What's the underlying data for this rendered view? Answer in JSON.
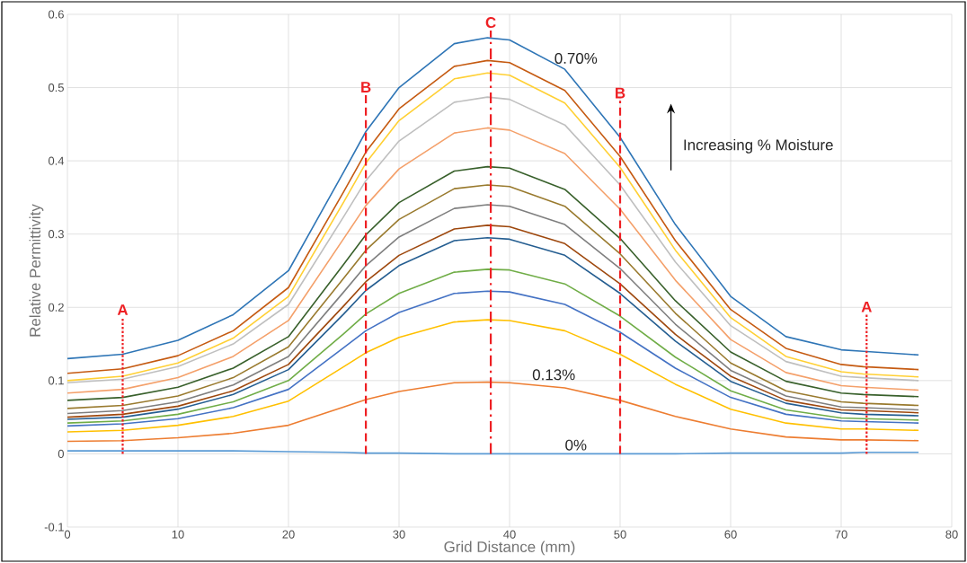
{
  "chart_data": {
    "type": "line",
    "xlabel": "Grid Distance (mm)",
    "ylabel": "Relative Permittivity",
    "x": [
      0,
      5,
      10,
      15,
      20,
      25,
      27,
      30,
      35,
      38,
      40,
      45,
      50,
      55,
      60,
      65,
      70,
      72,
      77
    ],
    "xlim": [
      0,
      80
    ],
    "xticks": [
      0,
      10,
      20,
      30,
      40,
      50,
      60,
      70,
      80
    ],
    "ylim": [
      -0.1,
      0.6
    ],
    "yticks": [
      -0.1,
      0,
      0.1,
      0.2,
      0.3,
      0.4,
      0.5,
      0.6
    ],
    "grid": true,
    "marker": "none",
    "line_style": "solid",
    "series": [
      {
        "color": "#2e75b6",
        "values": [
          0.13,
          0.136,
          0.155,
          0.19,
          0.25,
          0.385,
          0.44,
          0.5,
          0.56,
          0.568,
          0.565,
          0.525,
          0.432,
          0.313,
          0.215,
          0.16,
          0.142,
          0.14,
          0.135
        ]
      },
      {
        "color": "#c55a11",
        "values": [
          0.11,
          0.116,
          0.134,
          0.168,
          0.227,
          0.358,
          0.412,
          0.471,
          0.529,
          0.537,
          0.534,
          0.496,
          0.406,
          0.291,
          0.197,
          0.144,
          0.122,
          0.119,
          0.115
        ]
      },
      {
        "color": "#ffd034",
        "values": [
          0.1,
          0.106,
          0.124,
          0.158,
          0.215,
          0.344,
          0.397,
          0.455,
          0.512,
          0.52,
          0.517,
          0.479,
          0.391,
          0.278,
          0.186,
          0.133,
          0.112,
          0.109,
          0.105
        ]
      },
      {
        "color": "#bfbfbf",
        "values": [
          0.097,
          0.102,
          0.119,
          0.15,
          0.204,
          0.324,
          0.373,
          0.427,
          0.48,
          0.487,
          0.484,
          0.449,
          0.367,
          0.262,
          0.175,
          0.126,
          0.106,
          0.104,
          0.1
        ]
      },
      {
        "color": "#f4a06a",
        "values": [
          0.083,
          0.088,
          0.104,
          0.133,
          0.182,
          0.294,
          0.339,
          0.389,
          0.438,
          0.445,
          0.442,
          0.41,
          0.334,
          0.237,
          0.156,
          0.111,
          0.093,
          0.091,
          0.087
        ]
      },
      {
        "color": "#38602b",
        "values": [
          0.073,
          0.077,
          0.091,
          0.117,
          0.16,
          0.259,
          0.299,
          0.343,
          0.386,
          0.392,
          0.39,
          0.361,
          0.294,
          0.209,
          0.139,
          0.099,
          0.083,
          0.081,
          0.078
        ]
      },
      {
        "color": "#997a2e",
        "values": [
          0.062,
          0.066,
          0.079,
          0.104,
          0.146,
          0.24,
          0.278,
          0.32,
          0.362,
          0.367,
          0.365,
          0.338,
          0.273,
          0.192,
          0.124,
          0.086,
          0.071,
          0.069,
          0.066
        ]
      },
      {
        "color": "#7f7f7f",
        "values": [
          0.055,
          0.059,
          0.071,
          0.094,
          0.133,
          0.221,
          0.257,
          0.296,
          0.335,
          0.34,
          0.338,
          0.313,
          0.253,
          0.177,
          0.114,
          0.079,
          0.064,
          0.063,
          0.06
        ]
      },
      {
        "color": "#9e480e",
        "values": [
          0.05,
          0.054,
          0.065,
          0.086,
          0.122,
          0.202,
          0.235,
          0.271,
          0.307,
          0.312,
          0.31,
          0.287,
          0.232,
          0.163,
          0.106,
          0.073,
          0.06,
          0.059,
          0.056
        ]
      },
      {
        "color": "#255e91",
        "values": [
          0.047,
          0.05,
          0.061,
          0.081,
          0.115,
          0.191,
          0.223,
          0.257,
          0.291,
          0.295,
          0.293,
          0.271,
          0.219,
          0.154,
          0.099,
          0.069,
          0.056,
          0.054,
          0.052
        ]
      },
      {
        "color": "#70ad47",
        "values": [
          0.042,
          0.045,
          0.054,
          0.071,
          0.1,
          0.164,
          0.191,
          0.219,
          0.248,
          0.252,
          0.251,
          0.232,
          0.188,
          0.132,
          0.086,
          0.06,
          0.049,
          0.048,
          0.046
        ]
      },
      {
        "color": "#4472c4",
        "values": [
          0.038,
          0.041,
          0.048,
          0.063,
          0.088,
          0.145,
          0.168,
          0.193,
          0.219,
          0.222,
          0.221,
          0.204,
          0.166,
          0.117,
          0.077,
          0.054,
          0.045,
          0.044,
          0.042
        ]
      },
      {
        "color": "#ffc000",
        "values": [
          0.03,
          0.032,
          0.039,
          0.051,
          0.072,
          0.119,
          0.138,
          0.159,
          0.18,
          0.183,
          0.182,
          0.168,
          0.136,
          0.095,
          0.061,
          0.042,
          0.034,
          0.034,
          0.032
        ]
      },
      {
        "color": "#ed7d31",
        "values": [
          0.017,
          0.018,
          0.022,
          0.028,
          0.039,
          0.064,
          0.074,
          0.085,
          0.097,
          0.098,
          0.097,
          0.09,
          0.073,
          0.051,
          0.034,
          0.023,
          0.019,
          0.019,
          0.018
        ]
      },
      {
        "color": "#5b9bd5",
        "values": [
          0.004,
          0.004,
          0.004,
          0.004,
          0.003,
          0.002,
          0.001,
          0.001,
          0.0,
          0.0,
          0.0,
          0.0,
          0.0,
          0.0,
          0.001,
          0.001,
          0.001,
          0.002,
          0.002
        ]
      }
    ],
    "ref_lines": [
      {
        "axis": "x",
        "value": 5,
        "label": "A",
        "color": "#ee2024",
        "line_style": "dotted"
      },
      {
        "axis": "x",
        "value": 27,
        "label": "B",
        "color": "#ee2024",
        "line_style": "dashed"
      },
      {
        "axis": "x",
        "value": 38.3,
        "label": "C",
        "color": "#ee2024",
        "line_style": "dashdot"
      },
      {
        "axis": "x",
        "value": 50,
        "label": "B",
        "color": "#ee2024",
        "line_style": "dashed"
      },
      {
        "axis": "x",
        "value": 72.3,
        "label": "A",
        "color": "#ee2024",
        "line_style": "dotted"
      }
    ],
    "annotations": [
      "0.70%",
      "0.13%",
      "0%",
      "Increasing % Moisture"
    ]
  }
}
